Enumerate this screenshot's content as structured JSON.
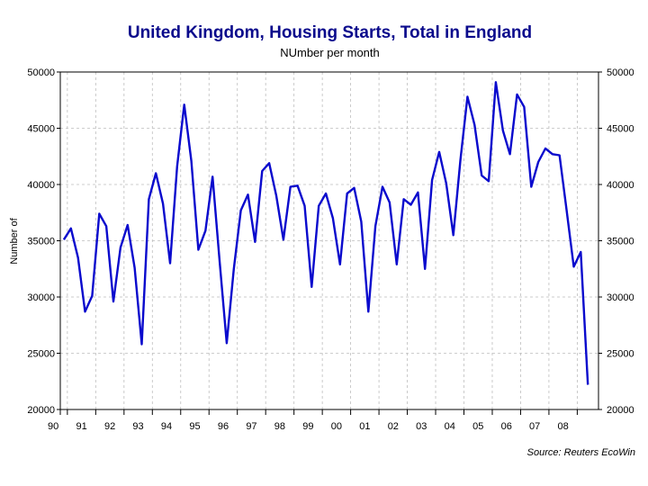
{
  "chart_data": {
    "type": "line",
    "title": "United Kingdom, Housing Starts, Total in England",
    "subtitle": "NUmber per month",
    "ylabel": "Number of",
    "xlabel": "",
    "ylim": [
      20000,
      50000
    ],
    "yticks": [
      "20000",
      "25000",
      "30000",
      "35000",
      "40000",
      "45000",
      "50000"
    ],
    "xticks": [
      "90",
      "91",
      "92",
      "93",
      "94",
      "95",
      "96",
      "97",
      "98",
      "99",
      "00",
      "01",
      "02",
      "03",
      "04",
      "05",
      "06",
      "07",
      "08"
    ],
    "x_start_year": 1989.75,
    "x_end_year": 2008.75,
    "grid": true,
    "line_color": "#0a0acd",
    "series": [
      {
        "name": "",
        "x": [
          1989.875,
          1990.125,
          1990.375,
          1990.625,
          1990.875,
          1991.125,
          1991.375,
          1991.625,
          1991.875,
          1992.125,
          1992.375,
          1992.625,
          1992.875,
          1993.125,
          1993.375,
          1993.625,
          1993.875,
          1994.125,
          1994.375,
          1994.625,
          1994.875,
          1995.125,
          1995.375,
          1995.625,
          1995.875,
          1996.125,
          1996.375,
          1996.625,
          1996.875,
          1997.125,
          1997.375,
          1997.625,
          1997.875,
          1998.125,
          1998.375,
          1998.625,
          1998.875,
          1999.125,
          1999.375,
          1999.625,
          1999.875,
          2000.125,
          2000.375,
          2000.625,
          2000.875,
          2001.125,
          2001.375,
          2001.625,
          2001.875,
          2002.125,
          2002.375,
          2002.625,
          2002.875,
          2003.125,
          2003.375,
          2003.625,
          2003.875,
          2004.125,
          2004.375,
          2004.625,
          2004.875,
          2005.125,
          2005.375,
          2005.625,
          2005.875,
          2006.125,
          2006.375,
          2006.625,
          2006.875,
          2007.125,
          2007.375,
          2007.625,
          2007.875,
          2008.125,
          2008.375
        ],
        "values": [
          35100,
          36100,
          33500,
          28700,
          30100,
          37400,
          36300,
          29600,
          34400,
          36400,
          32600,
          25800,
          38700,
          41000,
          38300,
          33000,
          41600,
          47100,
          42100,
          34200,
          35900,
          40700,
          33200,
          25900,
          32500,
          37700,
          39100,
          34900,
          41200,
          41900,
          39000,
          35100,
          39800,
          39900,
          38100,
          30900,
          38100,
          39200,
          37000,
          32900,
          39200,
          39700,
          36700,
          28700,
          36300,
          39800,
          38400,
          32900,
          38700,
          38200,
          39300,
          32500,
          40400,
          42900,
          40100,
          35500,
          42200,
          47800,
          45300,
          40800,
          40300,
          49100,
          44800,
          42700,
          48000,
          46900,
          39800,
          42000,
          43200,
          42700,
          42600,
          37700,
          32700,
          34000,
          22200
        ]
      }
    ]
  },
  "source": "Source: Reuters EcoWin"
}
